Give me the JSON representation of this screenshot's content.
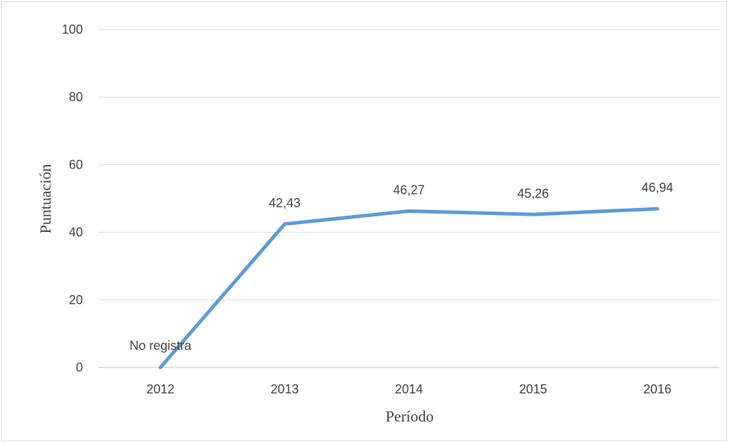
{
  "chart_data": {
    "type": "line",
    "xlabel": "Período",
    "ylabel": "Puntuación",
    "categories": [
      "2012",
      "2013",
      "2014",
      "2015",
      "2016"
    ],
    "series": [
      {
        "values": [
          0,
          42.43,
          46.27,
          45.26,
          46.94
        ],
        "labels": [
          "No registra",
          "42,43",
          "46,27",
          "45,26",
          "46,94"
        ],
        "color": "#5b9bd5"
      }
    ],
    "ylim": [
      0,
      100
    ],
    "yticks": [
      "0",
      "20",
      "40",
      "60",
      "80",
      "100"
    ],
    "grid": true,
    "legend": "none"
  }
}
